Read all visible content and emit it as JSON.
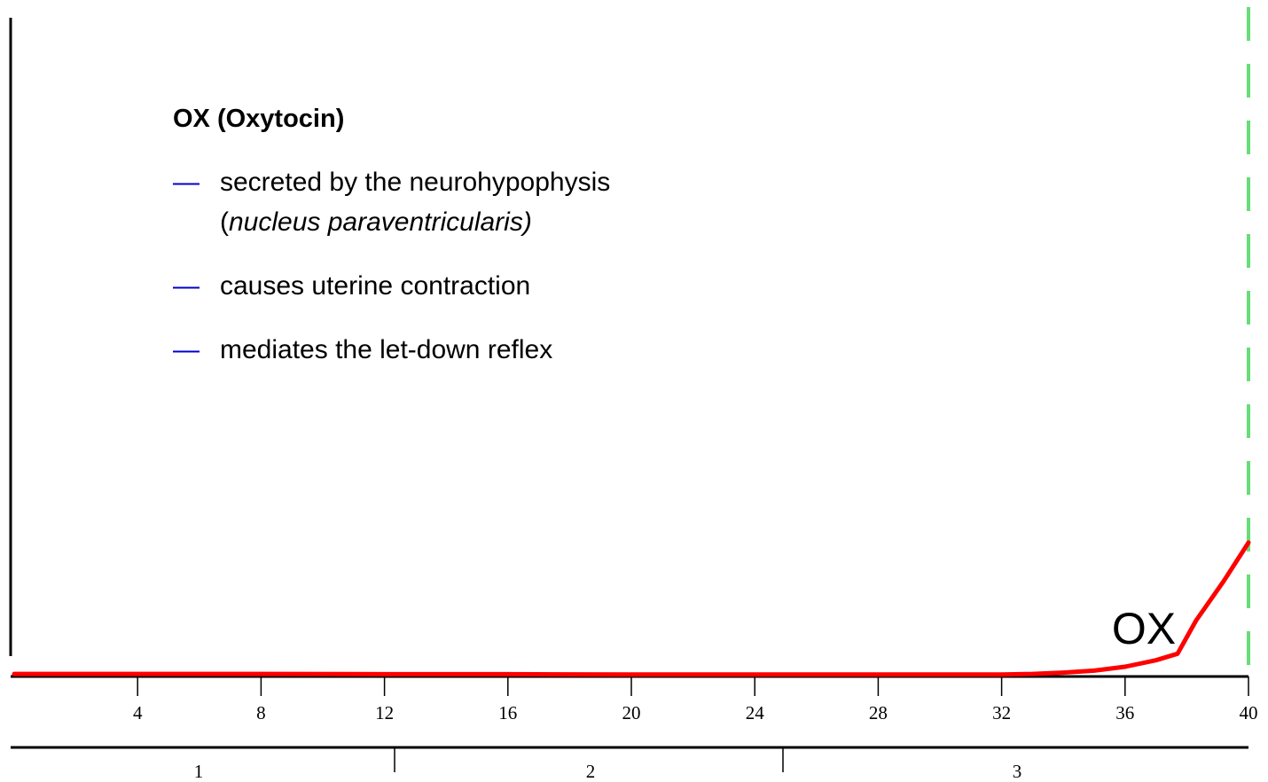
{
  "chart_data": {
    "type": "line",
    "x": [
      0,
      4,
      8,
      12,
      16,
      20,
      24,
      28,
      32,
      33,
      34,
      35,
      36,
      37,
      37.7,
      38.3,
      39.2,
      40
    ],
    "series": [
      {
        "name": "OX",
        "color": "#ff0000",
        "values": [
          0.4,
          0.4,
          0.4,
          0.35,
          0.35,
          0.3,
          0.3,
          0.3,
          0.3,
          0.4,
          0.6,
          0.9,
          1.5,
          2.5,
          3.5,
          8.6,
          14.7,
          20.6
        ]
      }
    ],
    "xlim": [
      0,
      40
    ],
    "ylim": [
      0,
      100
    ],
    "xticks": [
      4,
      8,
      12,
      16,
      20,
      24,
      28,
      32,
      36,
      40
    ],
    "trimesters": [
      "1",
      "2",
      "3"
    ],
    "term_line_color": "#66dd77",
    "annotation": {
      "title": "OX (Oxytocin)",
      "bullet_marker": "—",
      "bullets": [
        {
          "line1": "secreted by the neurohypophysis",
          "line2_open": "(",
          "line2_italic": "nucleus paraventricularis)"
        },
        {
          "line1": "causes uterine contraction"
        },
        {
          "line1": "mediates the let-down reflex"
        }
      ]
    }
  }
}
